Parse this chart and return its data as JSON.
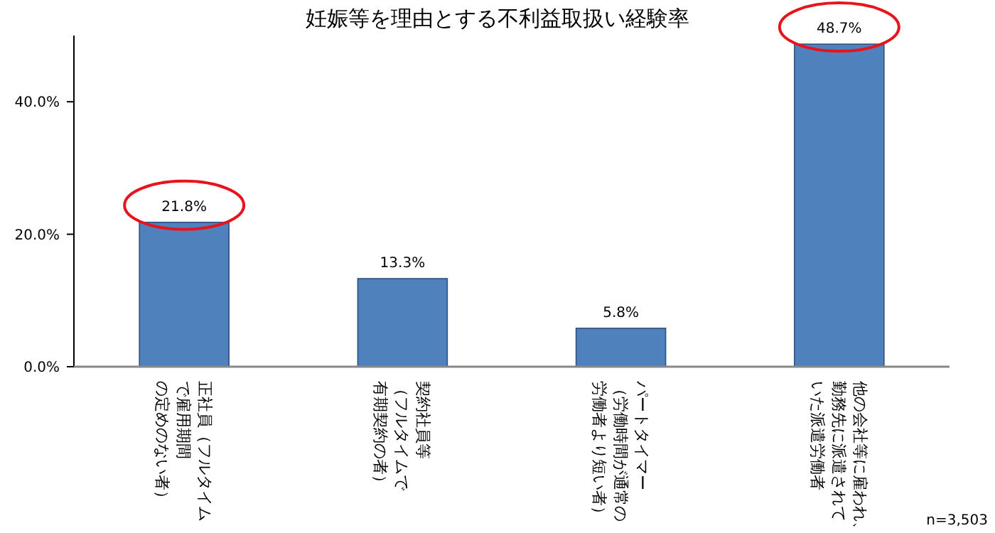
{
  "chart_data": {
    "type": "bar",
    "title": "妊娠等を理由とする不利益取扱い経験率",
    "categories": [
      "正社員（フルタイムで雇用期間の定めのない者）",
      "契約社員等（フルタイムで有期契約の者）",
      "パートタイマー（労働時間が通常の労働者より短い者）",
      "他の会社等に雇われ、勤務先に派遣されていた派遣労働者"
    ],
    "values": [
      21.8,
      13.3,
      5.8,
      48.7
    ],
    "value_labels": [
      "21.8%",
      "13.3%",
      "5.8%",
      "48.7%"
    ],
    "color": "#4f81bd",
    "ylim": [
      0,
      50
    ],
    "yticks": [
      {
        "value": 0,
        "label": "0.0%"
      },
      {
        "value": 20,
        "label": "20.0%"
      },
      {
        "value": 40,
        "label": "40.0%"
      }
    ],
    "grid": false,
    "annotations": [
      "n=3,503"
    ]
  }
}
